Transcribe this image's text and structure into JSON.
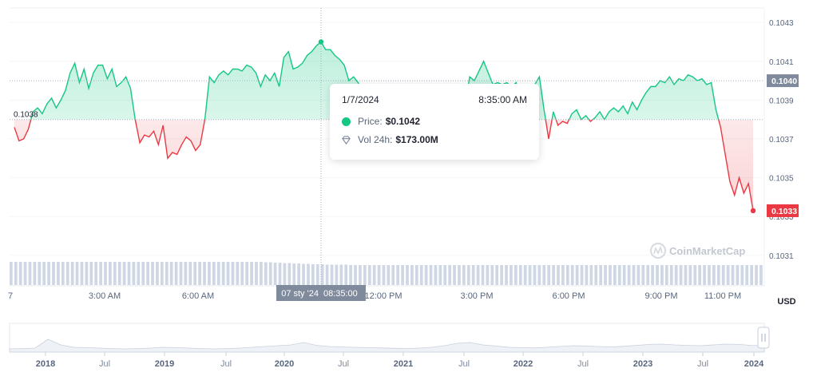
{
  "chart_data": {
    "type": "line",
    "currency_label": "USD",
    "y_ticks": [
      "0.1043",
      "0.1041",
      "0.1039",
      "0.1037",
      "0.1035",
      "0.1033",
      "0.1031"
    ],
    "ylim": [
      0.10305,
      0.10435
    ],
    "open_price_label": "0.1038",
    "open_price": 0.1038,
    "hover_price_badge": "0.1040",
    "last_price_badge": "0.1033",
    "x_ticks": [
      "7",
      "3:00 AM",
      "6:00 AM",
      "12:00 PM",
      "3:00 PM",
      "6:00 PM",
      "9:00 PM",
      "11:00 PM"
    ],
    "x_crosshair_label": [
      "07 sty '24",
      "08:35:00"
    ],
    "navigator_ticks": [
      "2018",
      "Jul",
      "2019",
      "Jul",
      "2020",
      "Jul",
      "2021",
      "Jul",
      "2022",
      "Jul",
      "2023",
      "Jul",
      "2024"
    ],
    "watermark": "CoinMarketCap",
    "series": [
      {
        "values": [
          0.10376,
          0.10369,
          0.1037,
          0.10375,
          0.10384,
          0.10386,
          0.10383,
          0.10388,
          0.10391,
          0.10386,
          0.1039,
          0.10395,
          0.10404,
          0.10409,
          0.10399,
          0.10406,
          0.10396,
          0.10404,
          0.10408,
          0.10408,
          0.10401,
          0.10406,
          0.10397,
          0.10399,
          0.10402,
          0.10396,
          0.1038,
          0.10368,
          0.10372,
          0.10371,
          0.10374,
          0.10367,
          0.10377,
          0.1036,
          0.10363,
          0.10362,
          0.10367,
          0.10371,
          0.10369,
          0.10364,
          0.10367,
          0.1038,
          0.10402,
          0.10399,
          0.10403,
          0.10405,
          0.10403,
          0.10406,
          0.10406,
          0.10405,
          0.10408,
          0.10407,
          0.10404,
          0.10397,
          0.10403,
          0.104,
          0.10404,
          0.10397,
          0.10412,
          0.10415,
          0.10406,
          0.10407,
          0.10409,
          0.10413,
          0.10415,
          0.10418,
          0.1042,
          0.10416,
          0.10416,
          0.10413,
          0.10411,
          0.10408,
          0.104,
          0.10402,
          0.10399,
          0.10392,
          0.10384,
          0.10385,
          0.10382,
          0.10378,
          0.10375,
          0.10372,
          0.10365,
          0.10362,
          0.10361,
          0.10364,
          0.1036,
          0.10365,
          0.10362,
          0.10363,
          0.10365,
          0.1036,
          0.10366,
          0.10363,
          0.1037,
          0.10372,
          0.10381,
          0.10388,
          0.10402,
          0.104,
          0.10405,
          0.1041,
          0.10404,
          0.10398,
          0.10399,
          0.10398,
          0.10399,
          0.10397,
          0.10399,
          0.10381,
          0.10385,
          0.10394,
          0.10398,
          0.10402,
          0.10385,
          0.1037,
          0.10384,
          0.10377,
          0.10379,
          0.10378,
          0.10383,
          0.10385,
          0.1038,
          0.10382,
          0.10379,
          0.10381,
          0.10384,
          0.1038,
          0.10384,
          0.10386,
          0.10384,
          0.10387,
          0.10383,
          0.10389,
          0.10385,
          0.1039,
          0.10394,
          0.10397,
          0.10397,
          0.104,
          0.10399,
          0.10402,
          0.10398,
          0.10401,
          0.104,
          0.10403,
          0.10402,
          0.104,
          0.10401,
          0.10398,
          0.10399,
          0.10385,
          0.10376,
          0.10362,
          0.10348,
          0.10341,
          0.1035,
          0.10342,
          0.10347,
          0.10333
        ],
        "color_up": "#16c784",
        "color_down": "#ea3943"
      }
    ],
    "hover": {
      "index": 66,
      "value": 0.1042
    },
    "volume": [
      0.58,
      0.58,
      0.58,
      0.58,
      0.58,
      0.58,
      0.58,
      0.58,
      0.58,
      0.58,
      0.58,
      0.58,
      0.58,
      0.58,
      0.58,
      0.58,
      0.58,
      0.58,
      0.58,
      0.58,
      0.58,
      0.58,
      0.58,
      0.58,
      0.58,
      0.58,
      0.58,
      0.58,
      0.58,
      0.58,
      0.58,
      0.58,
      0.58,
      0.58,
      0.58,
      0.58,
      0.58,
      0.58,
      0.58,
      0.58,
      0.58,
      0.58,
      0.58,
      0.58,
      0.58,
      0.58,
      0.58,
      0.58,
      0.58,
      0.58,
      0.58,
      0.58,
      0.58,
      0.58,
      0.57,
      0.57,
      0.56,
      0.56,
      0.55,
      0.55,
      0.54,
      0.54,
      0.53,
      0.53,
      0.52,
      0.52,
      0.52,
      0.51,
      0.51,
      0.51,
      0.51,
      0.51,
      0.5,
      0.5,
      0.5,
      0.5,
      0.5,
      0.5,
      0.5,
      0.5,
      0.5,
      0.5,
      0.5,
      0.5,
      0.5,
      0.5,
      0.5,
      0.5,
      0.5,
      0.5,
      0.5,
      0.5,
      0.5,
      0.5,
      0.5,
      0.5,
      0.5,
      0.5,
      0.5,
      0.5,
      0.5,
      0.5,
      0.5,
      0.5,
      0.5,
      0.5,
      0.5,
      0.5,
      0.5,
      0.5,
      0.5,
      0.5,
      0.5,
      0.5,
      0.5,
      0.5,
      0.5,
      0.5,
      0.5,
      0.5,
      0.5,
      0.5,
      0.5,
      0.5,
      0.5,
      0.5,
      0.5,
      0.5,
      0.5,
      0.5,
      0.5,
      0.5,
      0.5,
      0.5,
      0.5,
      0.5,
      0.5,
      0.5,
      0.5,
      0.5,
      0.5,
      0.5,
      0.5,
      0.5,
      0.5,
      0.5,
      0.5,
      0.5,
      0.5,
      0.5,
      0.5,
      0.5,
      0.5,
      0.5,
      0.5,
      0.5,
      0.5,
      0.5,
      0.5,
      0.5
    ],
    "navigator_values": [
      0.2,
      0.22,
      0.25,
      0.8,
      0.45,
      0.3,
      0.28,
      0.25,
      0.22,
      0.2,
      0.22,
      0.25,
      0.3,
      0.28,
      0.25,
      0.22,
      0.2,
      0.22,
      0.25,
      0.3,
      0.35,
      0.4,
      0.45,
      0.6,
      0.42,
      0.35,
      0.32,
      0.3,
      0.28,
      0.26,
      0.24,
      0.22,
      0.25,
      0.3,
      0.4,
      0.55,
      0.6,
      0.45,
      0.38,
      0.3,
      0.28,
      0.26,
      0.3,
      0.35,
      0.4,
      0.38,
      0.35,
      0.32,
      0.36,
      0.42,
      0.48,
      0.5,
      0.45,
      0.42,
      0.4,
      0.45,
      0.5,
      0.48,
      0.42,
      0.4
    ]
  },
  "tooltip": {
    "date": "1/7/2024",
    "time": "8:35:00 AM",
    "price_label": "Price:",
    "price_value": "$0.1042",
    "volume_label": "Vol 24h:",
    "volume_value": "$173.00M"
  },
  "colors": {
    "up": "#16c784",
    "down": "#ea3943",
    "badge_gray": "#808a9d",
    "axis_text": "#58667e"
  }
}
